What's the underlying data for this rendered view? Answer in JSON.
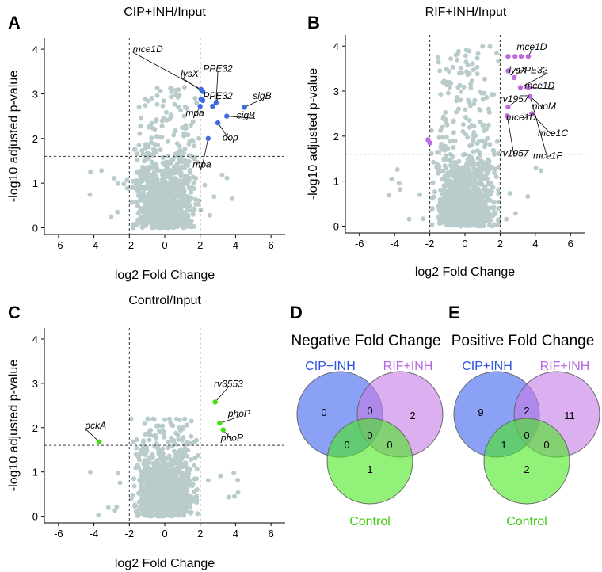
{
  "panel_labels": {
    "A": "A",
    "B": "B",
    "C": "C",
    "D": "D",
    "E": "E"
  },
  "chart_data": [
    {
      "id": "A",
      "type": "scatter",
      "title": "CIP+INH/Input",
      "xlabel": "log2 Fold Change",
      "ylabel": "-log10 adjusted p-value",
      "xlim": [
        -6.8,
        6.8
      ],
      "ylim": [
        -0.15,
        4.25
      ],
      "xticks": [
        -6,
        -4,
        -2,
        0,
        2,
        4,
        6
      ],
      "yticks": [
        0,
        1,
        2,
        3,
        4
      ],
      "thresholds": {
        "x": [
          -2,
          2
        ],
        "y": 1.6
      },
      "highlight_color": "#4169E1",
      "background_color": "#b9cccb",
      "background_max_y": 3.15,
      "background_max_x": 2.4,
      "highlighted": [
        {
          "x": 2.05,
          "y": 3.1
        },
        {
          "x": 2.15,
          "y": 3.05
        },
        {
          "x": 2.05,
          "y": 2.88
        },
        {
          "x": 2.15,
          "y": 2.85
        },
        {
          "x": 2.0,
          "y": 2.72
        },
        {
          "x": 2.7,
          "y": 2.72
        },
        {
          "x": 2.9,
          "y": 2.8
        },
        {
          "x": 4.5,
          "y": 2.7
        },
        {
          "x": 3.5,
          "y": 2.5
        },
        {
          "x": 3.0,
          "y": 2.35
        },
        {
          "x": 2.45,
          "y": 2.0
        }
      ],
      "labels": [
        {
          "text": "mce1D",
          "tx": -1.8,
          "ty": 3.93,
          "px": 2.05,
          "py": 3.1
        },
        {
          "text": "lysX",
          "tx": 0.9,
          "ty": 3.38,
          "px": 2.15,
          "py": 3.05
        },
        {
          "text": "PPE32",
          "tx": 3.0,
          "ty": 3.5,
          "px": 2.9,
          "py": 2.8
        },
        {
          "text": "PPE32",
          "tx": 3.0,
          "ty": 2.88,
          "px": 2.7,
          "py": 2.72
        },
        {
          "text": "sigB",
          "tx": 5.5,
          "ty": 2.88,
          "px": 4.5,
          "py": 2.7
        },
        {
          "text": "mpa",
          "tx": 1.7,
          "ty": 2.5,
          "px": 2.0,
          "py": 2.72
        },
        {
          "text": "sigB",
          "tx": 5.1,
          "ty": 2.45,
          "px": 3.5,
          "py": 2.5
        },
        {
          "text": "dop",
          "tx": 3.7,
          "ty": 1.95,
          "px": 3.0,
          "py": 2.35
        },
        {
          "text": "mpa",
          "tx": 2.1,
          "ty": 1.35,
          "px": 2.45,
          "py": 2.0
        }
      ]
    },
    {
      "id": "B",
      "type": "scatter",
      "title": "RIF+INH/Input",
      "xlabel": "log2 Fold Change",
      "ylabel": "-log10 adjusted p-value",
      "xlim": [
        -6.8,
        6.8
      ],
      "ylim": [
        -0.15,
        4.25
      ],
      "xticks": [
        -6,
        -4,
        -2,
        0,
        2,
        4,
        6
      ],
      "yticks": [
        0,
        1,
        2,
        3,
        4
      ],
      "thresholds": {
        "x": [
          -2,
          2
        ],
        "y": 1.6
      },
      "highlight_color": "#c06ae0",
      "background_color": "#b9cccb",
      "background_max_y": 4.0,
      "background_max_x": 1.9,
      "highlighted": [
        {
          "x": 2.45,
          "y": 3.77
        },
        {
          "x": 2.85,
          "y": 3.77
        },
        {
          "x": 3.2,
          "y": 3.77
        },
        {
          "x": 3.6,
          "y": 3.77
        },
        {
          "x": 2.45,
          "y": 3.45
        },
        {
          "x": 2.8,
          "y": 3.3
        },
        {
          "x": 3.15,
          "y": 3.08
        },
        {
          "x": 3.6,
          "y": 3.08
        },
        {
          "x": 2.45,
          "y": 2.65
        },
        {
          "x": 3.7,
          "y": 2.88
        },
        {
          "x": 3.8,
          "y": 2.5
        },
        {
          "x": 2.4,
          "y": 2.45
        },
        {
          "x": -2.1,
          "y": 1.92
        },
        {
          "x": -2.0,
          "y": 1.85
        }
      ],
      "labels": [
        {
          "text": "mce1D",
          "tx": 3.8,
          "ty": 3.92,
          "px": 3.6,
          "py": 3.77
        },
        {
          "text": "lysX",
          "tx": 3.0,
          "ty": 3.4,
          "px": 2.8,
          "py": 3.3
        },
        {
          "text": "PPE32",
          "tx": 4.7,
          "ty": 3.4,
          "px": 3.15,
          "py": 3.08
        },
        {
          "text": "mce1D",
          "tx": 5.1,
          "ty": 3.05,
          "px": 3.6,
          "py": 3.08
        },
        {
          "text": "rv1957",
          "tx": 2.8,
          "ty": 2.75,
          "px": 2.45,
          "py": 2.65
        },
        {
          "text": "nuoM",
          "tx": 4.5,
          "ty": 2.6,
          "px": 3.7,
          "py": 2.88
        },
        {
          "text": "mce1D",
          "tx": 3.2,
          "ty": 2.35,
          "px": 3.8,
          "py": 2.5
        },
        {
          "text": "mce1C",
          "tx": 5.0,
          "ty": 2.0,
          "px": 3.8,
          "py": 2.5
        },
        {
          "text": "rv1957",
          "tx": 2.8,
          "ty": 1.55,
          "px": 2.4,
          "py": 2.45
        },
        {
          "text": "mce1F",
          "tx": 4.7,
          "ty": 1.5,
          "px": 3.7,
          "py": 2.88
        }
      ]
    },
    {
      "id": "C",
      "type": "scatter",
      "title": "Control/Input",
      "xlabel": "log2 Fold Change",
      "ylabel": "-log10 adjusted p-value",
      "xlim": [
        -6.8,
        6.8
      ],
      "ylim": [
        -0.15,
        4.25
      ],
      "xticks": [
        -6,
        -4,
        -2,
        0,
        2,
        4,
        6
      ],
      "yticks": [
        0,
        1,
        2,
        3,
        4
      ],
      "thresholds": {
        "x": [
          -2,
          2
        ],
        "y": 1.6
      },
      "highlight_color": "#44dd11",
      "background_color": "#b9cccb",
      "background_max_y": 2.2,
      "background_max_x": 1.9,
      "highlighted": [
        {
          "x": 2.85,
          "y": 2.58
        },
        {
          "x": 3.1,
          "y": 2.1
        },
        {
          "x": 3.3,
          "y": 1.95
        },
        {
          "x": -3.7,
          "y": 1.68
        }
      ],
      "labels": [
        {
          "text": "rv3553",
          "tx": 3.6,
          "ty": 2.92,
          "px": 2.85,
          "py": 2.58
        },
        {
          "text": "phoP",
          "tx": 4.2,
          "ty": 2.25,
          "px": 3.1,
          "py": 2.1
        },
        {
          "text": "phoP",
          "tx": 3.8,
          "ty": 1.7,
          "px": 3.3,
          "py": 1.95
        },
        {
          "text": "pckA",
          "tx": -4.5,
          "ty": 1.98,
          "px": -3.7,
          "py": 1.68
        }
      ]
    },
    {
      "id": "D",
      "type": "venn",
      "title": "Negative Fold Change",
      "sets": [
        {
          "name": "CIP+INH",
          "color": "#3d62ee",
          "label_color": "#2e52e0"
        },
        {
          "name": "RIF+INH",
          "color": "#c47ae6",
          "label_color": "#b768e0"
        },
        {
          "name": "Control",
          "color": "#48e81e",
          "label_color": "#3fcc12"
        }
      ],
      "counts": {
        "cip_only": "0",
        "rif_only": "2",
        "control_only": "1",
        "cip_rif": "0",
        "cip_control": "0",
        "rif_control": "0",
        "all": "0"
      }
    },
    {
      "id": "E",
      "type": "venn",
      "title": "Positive Fold Change",
      "sets": [
        {
          "name": "CIP+INH",
          "color": "#3d62ee",
          "label_color": "#2e52e0"
        },
        {
          "name": "RIF+INH",
          "color": "#c47ae6",
          "label_color": "#b768e0"
        },
        {
          "name": "Control",
          "color": "#48e81e",
          "label_color": "#3fcc12"
        }
      ],
      "counts": {
        "cip_only": "9",
        "rif_only": "11",
        "control_only": "2",
        "cip_rif": "2",
        "cip_control": "1",
        "rif_control": "0",
        "all": "0"
      }
    }
  ]
}
